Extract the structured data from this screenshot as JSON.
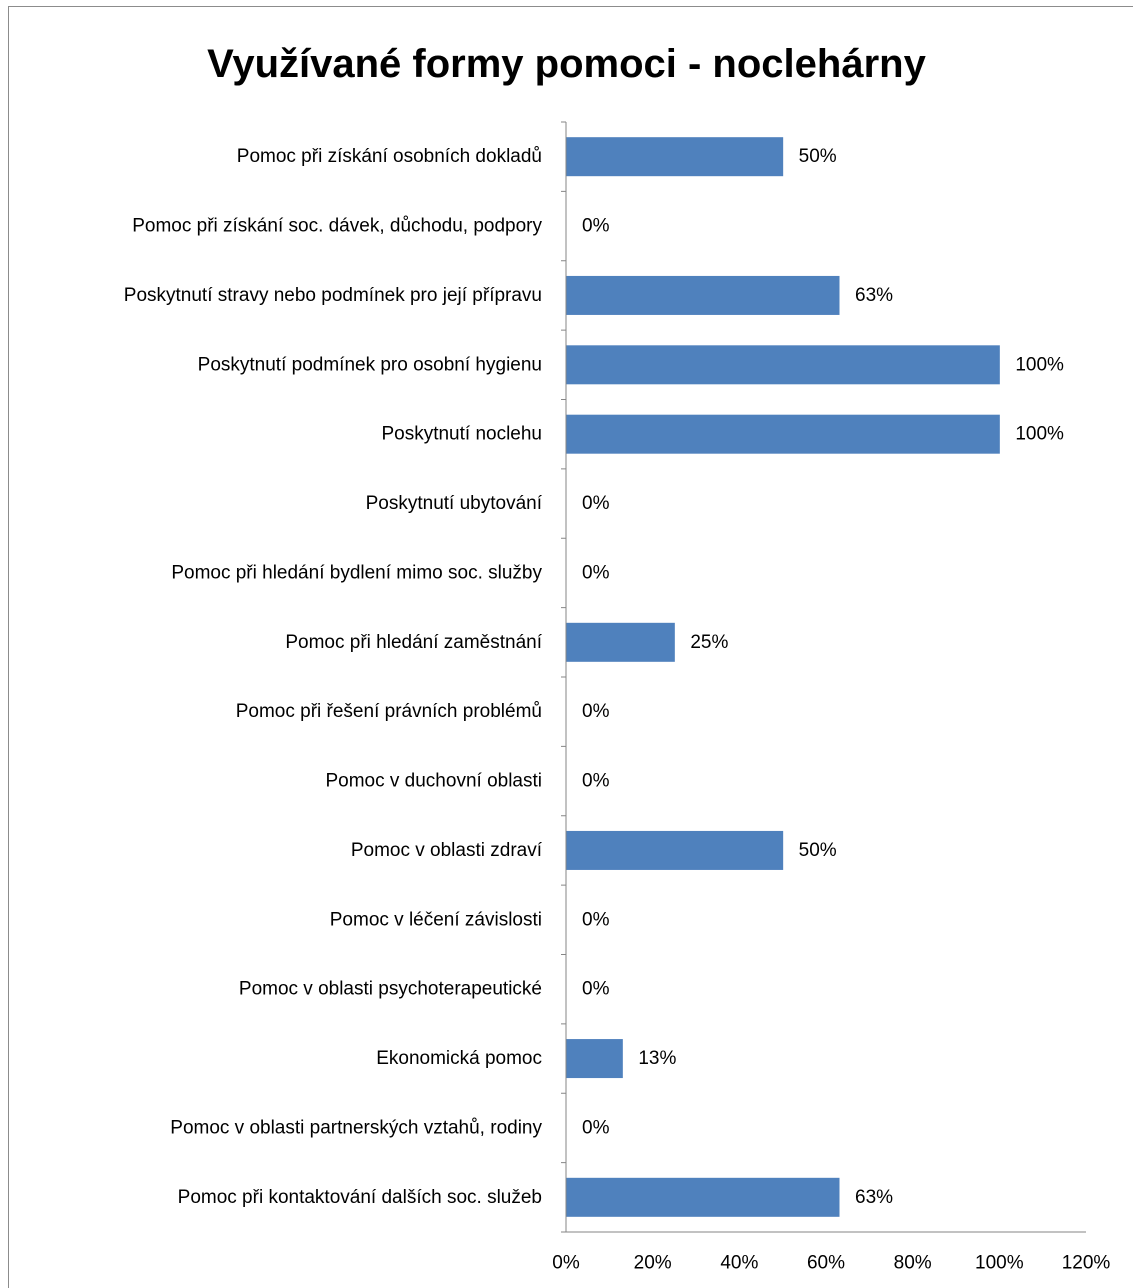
{
  "chart_data": {
    "type": "bar",
    "orientation": "horizontal",
    "title": "Využívané formy pomoci - noclehárny",
    "categories": [
      "Pomoc při získání osobních dokladů",
      "Pomoc při získání soc. dávek, důchodu, podpory",
      "Poskytnutí stravy nebo podmínek pro její přípravu",
      "Poskytnutí podmínek pro osobní hygienu",
      "Poskytnutí noclehu",
      "Poskytnutí ubytování",
      "Pomoc při hledání bydlení mimo soc. služby",
      "Pomoc při hledání zaměstnání",
      "Pomoc při řešení právních problémů",
      "Pomoc v duchovní oblasti",
      "Pomoc v oblasti zdraví",
      "Pomoc v léčení závislosti",
      "Pomoc v oblasti psychoterapeutické",
      "Ekonomická pomoc",
      "Pomoc v oblasti partnerských vztahů, rodiny",
      "Pomoc při kontaktování dalších soc. služeb"
    ],
    "values": [
      50,
      0,
      63,
      100,
      100,
      0,
      0,
      25,
      0,
      0,
      50,
      0,
      0,
      13,
      0,
      63
    ],
    "data_labels": [
      "50%",
      "0%",
      "63%",
      "100%",
      "100%",
      "0%",
      "0%",
      "25%",
      "0%",
      "0%",
      "50%",
      "0%",
      "0%",
      "13%",
      "0%",
      "63%"
    ],
    "x_ticks": [
      "0%",
      "20%",
      "40%",
      "60%",
      "80%",
      "100%",
      "120%"
    ],
    "xlim": [
      0,
      120
    ],
    "bar_color": "#4f81bd",
    "axis_color": "#868686",
    "grid": false,
    "legend": "none"
  }
}
